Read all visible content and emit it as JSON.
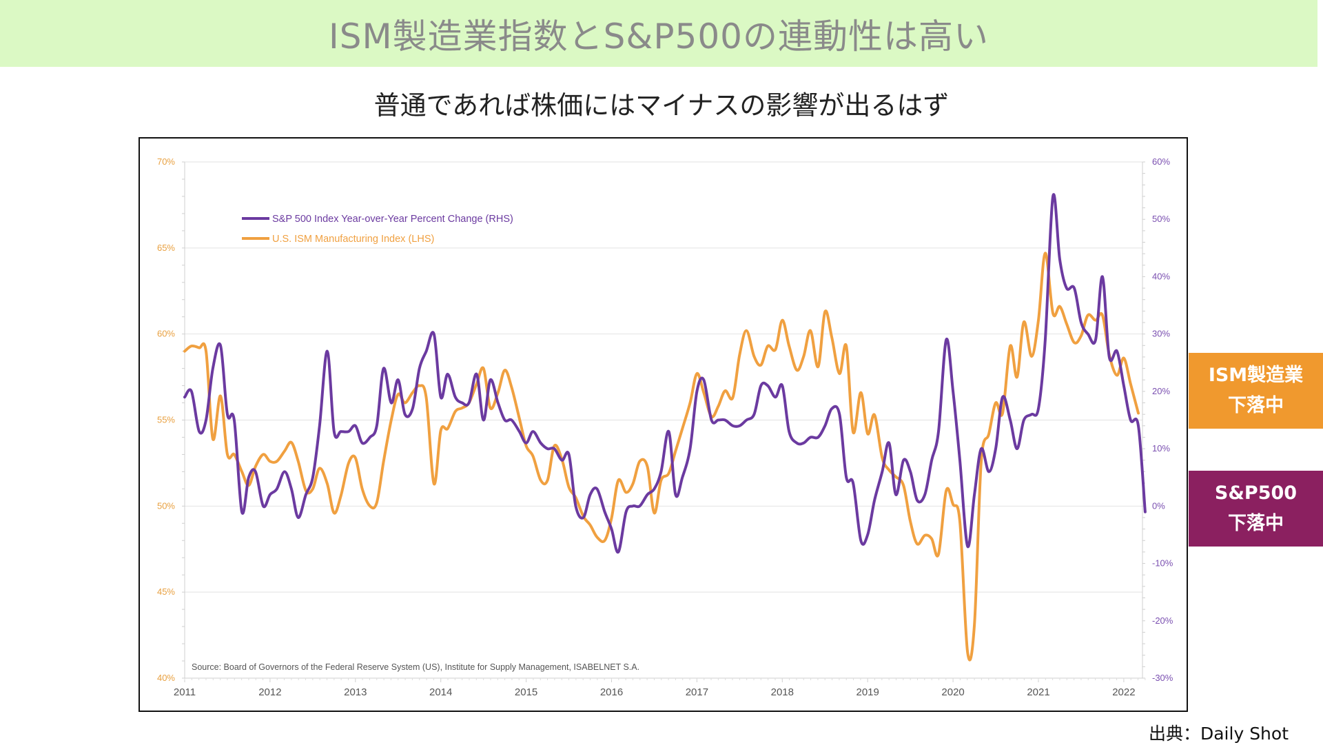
{
  "header": {
    "title": "ISM製造業指数とS&P500の連動性は高い",
    "subtitle": "普通であれば株価にはマイナスの影響が出るはず"
  },
  "tags": {
    "ism": [
      "ISM製造業",
      "下落中"
    ],
    "sp500": [
      "S&P500",
      "下落中"
    ]
  },
  "credit": "出典：Daily Shot",
  "colors": {
    "sp500": "#6b3aa0",
    "ism": "#f0a040",
    "banner": "#dbf9c4",
    "tag_ism": "#f0992e",
    "tag_sp": "#8b2060"
  },
  "chart_data": {
    "type": "line",
    "source_note": "Source: Board of Governors of the Federal Reserve System (US), Institute for Supply Management, ISABELNET S.A.",
    "x_ticks": [
      "2011",
      "2012",
      "2013",
      "2014",
      "2015",
      "2016",
      "2017",
      "2018",
      "2019",
      "2020",
      "2021",
      "2022"
    ],
    "left_axis": {
      "ticks": [
        "40%",
        "45%",
        "50%",
        "55%",
        "60%",
        "65%",
        "70%"
      ],
      "range": [
        40,
        70
      ]
    },
    "right_axis": {
      "ticks": [
        "-30%",
        "-20%",
        "-10%",
        "0%",
        "10%",
        "20%",
        "30%",
        "40%",
        "50%",
        "60%"
      ],
      "range": [
        -30,
        60
      ]
    },
    "grid": true,
    "legend_position": "top-left",
    "series": [
      {
        "name": "S&P 500 Index Year-over-Year Percent Change (RHS)",
        "axis": "right",
        "color": "#6b3aa0",
        "points": [
          [
            2011.0,
            19
          ],
          [
            2011.08,
            20
          ],
          [
            2011.17,
            13
          ],
          [
            2011.25,
            15
          ],
          [
            2011.33,
            24
          ],
          [
            2011.42,
            28
          ],
          [
            2011.5,
            16
          ],
          [
            2011.58,
            15
          ],
          [
            2011.67,
            -1
          ],
          [
            2011.75,
            5
          ],
          [
            2011.83,
            6
          ],
          [
            2011.92,
            0
          ],
          [
            2012.0,
            2
          ],
          [
            2012.08,
            3
          ],
          [
            2012.17,
            6
          ],
          [
            2012.25,
            3
          ],
          [
            2012.33,
            -2
          ],
          [
            2012.42,
            2
          ],
          [
            2012.5,
            5
          ],
          [
            2012.58,
            14
          ],
          [
            2012.67,
            27
          ],
          [
            2012.75,
            13
          ],
          [
            2012.83,
            13
          ],
          [
            2012.92,
            13
          ],
          [
            2013.0,
            14
          ],
          [
            2013.08,
            11
          ],
          [
            2013.17,
            12
          ],
          [
            2013.25,
            14
          ],
          [
            2013.33,
            24
          ],
          [
            2013.42,
            18
          ],
          [
            2013.5,
            22
          ],
          [
            2013.58,
            16
          ],
          [
            2013.67,
            17
          ],
          [
            2013.75,
            24
          ],
          [
            2013.83,
            27
          ],
          [
            2013.92,
            30
          ],
          [
            2014.0,
            19
          ],
          [
            2014.08,
            23
          ],
          [
            2014.17,
            19
          ],
          [
            2014.25,
            18
          ],
          [
            2014.33,
            18
          ],
          [
            2014.42,
            23
          ],
          [
            2014.5,
            15
          ],
          [
            2014.58,
            22
          ],
          [
            2014.67,
            18
          ],
          [
            2014.75,
            15
          ],
          [
            2014.83,
            15
          ],
          [
            2014.92,
            13
          ],
          [
            2015.0,
            11
          ],
          [
            2015.08,
            13
          ],
          [
            2015.17,
            11
          ],
          [
            2015.25,
            10
          ],
          [
            2015.33,
            10
          ],
          [
            2015.42,
            8
          ],
          [
            2015.5,
            9
          ],
          [
            2015.58,
            0
          ],
          [
            2015.67,
            -2
          ],
          [
            2015.75,
            2
          ],
          [
            2015.83,
            3
          ],
          [
            2015.92,
            -1
          ],
          [
            2016.0,
            -4
          ],
          [
            2016.08,
            -8
          ],
          [
            2016.17,
            -1
          ],
          [
            2016.25,
            0
          ],
          [
            2016.33,
            0
          ],
          [
            2016.42,
            2
          ],
          [
            2016.5,
            3
          ],
          [
            2016.58,
            6
          ],
          [
            2016.67,
            13
          ],
          [
            2016.75,
            2
          ],
          [
            2016.83,
            5
          ],
          [
            2016.92,
            10
          ],
          [
            2017.0,
            20
          ],
          [
            2017.08,
            22
          ],
          [
            2017.17,
            15
          ],
          [
            2017.25,
            15
          ],
          [
            2017.33,
            15
          ],
          [
            2017.42,
            14
          ],
          [
            2017.5,
            14
          ],
          [
            2017.58,
            15
          ],
          [
            2017.67,
            16
          ],
          [
            2017.75,
            21
          ],
          [
            2017.83,
            21
          ],
          [
            2017.92,
            19
          ],
          [
            2018.0,
            21
          ],
          [
            2018.08,
            13
          ],
          [
            2018.17,
            11
          ],
          [
            2018.25,
            11
          ],
          [
            2018.33,
            12
          ],
          [
            2018.42,
            12
          ],
          [
            2018.5,
            14
          ],
          [
            2018.58,
            17
          ],
          [
            2018.67,
            16
          ],
          [
            2018.75,
            5
          ],
          [
            2018.83,
            4
          ],
          [
            2018.92,
            -6
          ],
          [
            2019.0,
            -5
          ],
          [
            2019.08,
            1
          ],
          [
            2019.17,
            6
          ],
          [
            2019.25,
            11
          ],
          [
            2019.33,
            2
          ],
          [
            2019.42,
            8
          ],
          [
            2019.5,
            6
          ],
          [
            2019.58,
            1
          ],
          [
            2019.67,
            2
          ],
          [
            2019.75,
            8
          ],
          [
            2019.83,
            13
          ],
          [
            2019.92,
            29
          ],
          [
            2020.0,
            20
          ],
          [
            2020.08,
            8
          ],
          [
            2020.17,
            -7
          ],
          [
            2020.25,
            2
          ],
          [
            2020.33,
            10
          ],
          [
            2020.42,
            6
          ],
          [
            2020.5,
            10
          ],
          [
            2020.58,
            19
          ],
          [
            2020.67,
            15
          ],
          [
            2020.75,
            10
          ],
          [
            2020.83,
            15
          ],
          [
            2020.92,
            16
          ],
          [
            2021.0,
            17
          ],
          [
            2021.08,
            29
          ],
          [
            2021.17,
            54
          ],
          [
            2021.25,
            43
          ],
          [
            2021.33,
            38
          ],
          [
            2021.42,
            38
          ],
          [
            2021.5,
            32
          ],
          [
            2021.58,
            30
          ],
          [
            2021.67,
            29
          ],
          [
            2021.75,
            40
          ],
          [
            2021.83,
            26
          ],
          [
            2021.92,
            27
          ],
          [
            2022.0,
            21
          ],
          [
            2022.08,
            15
          ],
          [
            2022.17,
            14
          ],
          [
            2022.25,
            -1
          ]
        ]
      },
      {
        "name": "U.S. ISM Manufacturing Index (LHS)",
        "axis": "left",
        "color": "#f0a040",
        "points": [
          [
            2011.0,
            59.0
          ],
          [
            2011.08,
            59.3
          ],
          [
            2011.17,
            59.2
          ],
          [
            2011.25,
            59.0
          ],
          [
            2011.33,
            53.9
          ],
          [
            2011.42,
            56.4
          ],
          [
            2011.5,
            53.0
          ],
          [
            2011.58,
            53.0
          ],
          [
            2011.67,
            52.0
          ],
          [
            2011.75,
            51.2
          ],
          [
            2011.83,
            52.3
          ],
          [
            2011.92,
            53.0
          ],
          [
            2012.0,
            52.6
          ],
          [
            2012.08,
            52.6
          ],
          [
            2012.17,
            53.2
          ],
          [
            2012.25,
            53.7
          ],
          [
            2012.33,
            52.6
          ],
          [
            2012.42,
            50.9
          ],
          [
            2012.5,
            51.0
          ],
          [
            2012.58,
            52.2
          ],
          [
            2012.67,
            51.3
          ],
          [
            2012.75,
            49.6
          ],
          [
            2012.83,
            50.6
          ],
          [
            2012.92,
            52.5
          ],
          [
            2013.0,
            52.8
          ],
          [
            2013.08,
            51.0
          ],
          [
            2013.17,
            50.0
          ],
          [
            2013.25,
            50.2
          ],
          [
            2013.33,
            52.6
          ],
          [
            2013.42,
            55.0
          ],
          [
            2013.5,
            56.5
          ],
          [
            2013.58,
            56.0
          ],
          [
            2013.67,
            56.6
          ],
          [
            2013.75,
            57.0
          ],
          [
            2013.83,
            56.3
          ],
          [
            2013.92,
            51.3
          ],
          [
            2014.0,
            54.4
          ],
          [
            2014.08,
            54.5
          ],
          [
            2014.17,
            55.5
          ],
          [
            2014.25,
            55.7
          ],
          [
            2014.33,
            56.0
          ],
          [
            2014.42,
            57.1
          ],
          [
            2014.5,
            58.0
          ],
          [
            2014.58,
            55.7
          ],
          [
            2014.67,
            56.6
          ],
          [
            2014.75,
            57.9
          ],
          [
            2014.83,
            56.9
          ],
          [
            2014.92,
            55.1
          ],
          [
            2015.0,
            53.5
          ],
          [
            2015.08,
            52.9
          ],
          [
            2015.17,
            51.5
          ],
          [
            2015.25,
            51.5
          ],
          [
            2015.33,
            53.5
          ],
          [
            2015.42,
            52.7
          ],
          [
            2015.5,
            51.1
          ],
          [
            2015.58,
            50.5
          ],
          [
            2015.67,
            49.4
          ],
          [
            2015.75,
            48.9
          ],
          [
            2015.83,
            48.2
          ],
          [
            2015.92,
            48.0
          ],
          [
            2016.0,
            49.3
          ],
          [
            2016.08,
            51.5
          ],
          [
            2016.17,
            50.8
          ],
          [
            2016.25,
            51.3
          ],
          [
            2016.33,
            52.6
          ],
          [
            2016.42,
            52.3
          ],
          [
            2016.5,
            49.6
          ],
          [
            2016.58,
            51.5
          ],
          [
            2016.67,
            51.9
          ],
          [
            2016.75,
            53.2
          ],
          [
            2016.83,
            54.5
          ],
          [
            2016.92,
            56.0
          ],
          [
            2017.0,
            57.7
          ],
          [
            2017.08,
            56.6
          ],
          [
            2017.17,
            55.2
          ],
          [
            2017.25,
            55.8
          ],
          [
            2017.33,
            56.7
          ],
          [
            2017.42,
            56.3
          ],
          [
            2017.5,
            58.8
          ],
          [
            2017.58,
            60.2
          ],
          [
            2017.67,
            58.7
          ],
          [
            2017.75,
            58.2
          ],
          [
            2017.83,
            59.3
          ],
          [
            2017.92,
            59.1
          ],
          [
            2018.0,
            60.8
          ],
          [
            2018.08,
            59.3
          ],
          [
            2018.17,
            57.9
          ],
          [
            2018.25,
            58.7
          ],
          [
            2018.33,
            60.2
          ],
          [
            2018.42,
            58.1
          ],
          [
            2018.5,
            61.3
          ],
          [
            2018.58,
            59.8
          ],
          [
            2018.67,
            57.7
          ],
          [
            2018.75,
            59.3
          ],
          [
            2018.83,
            54.3
          ],
          [
            2018.92,
            56.6
          ],
          [
            2019.0,
            54.2
          ],
          [
            2019.08,
            55.3
          ],
          [
            2019.17,
            52.8
          ],
          [
            2019.25,
            52.1
          ],
          [
            2019.33,
            51.7
          ],
          [
            2019.42,
            51.2
          ],
          [
            2019.5,
            49.1
          ],
          [
            2019.58,
            47.8
          ],
          [
            2019.67,
            48.3
          ],
          [
            2019.75,
            48.1
          ],
          [
            2019.83,
            47.2
          ],
          [
            2019.92,
            50.9
          ],
          [
            2020.0,
            50.1
          ],
          [
            2020.08,
            49.1
          ],
          [
            2020.17,
            41.5
          ],
          [
            2020.25,
            43.1
          ],
          [
            2020.33,
            52.6
          ],
          [
            2020.42,
            54.2
          ],
          [
            2020.5,
            56.0
          ],
          [
            2020.58,
            55.4
          ],
          [
            2020.67,
            59.3
          ],
          [
            2020.75,
            57.5
          ],
          [
            2020.83,
            60.7
          ],
          [
            2020.92,
            58.7
          ],
          [
            2021.0,
            60.8
          ],
          [
            2021.08,
            64.7
          ],
          [
            2021.17,
            61.2
          ],
          [
            2021.25,
            61.6
          ],
          [
            2021.33,
            60.6
          ],
          [
            2021.42,
            59.5
          ],
          [
            2021.5,
            59.9
          ],
          [
            2021.58,
            61.1
          ],
          [
            2021.67,
            60.8
          ],
          [
            2021.75,
            61.1
          ],
          [
            2021.83,
            58.8
          ],
          [
            2021.92,
            57.6
          ],
          [
            2022.0,
            58.6
          ],
          [
            2022.08,
            57.1
          ],
          [
            2022.17,
            55.4
          ]
        ]
      }
    ]
  }
}
